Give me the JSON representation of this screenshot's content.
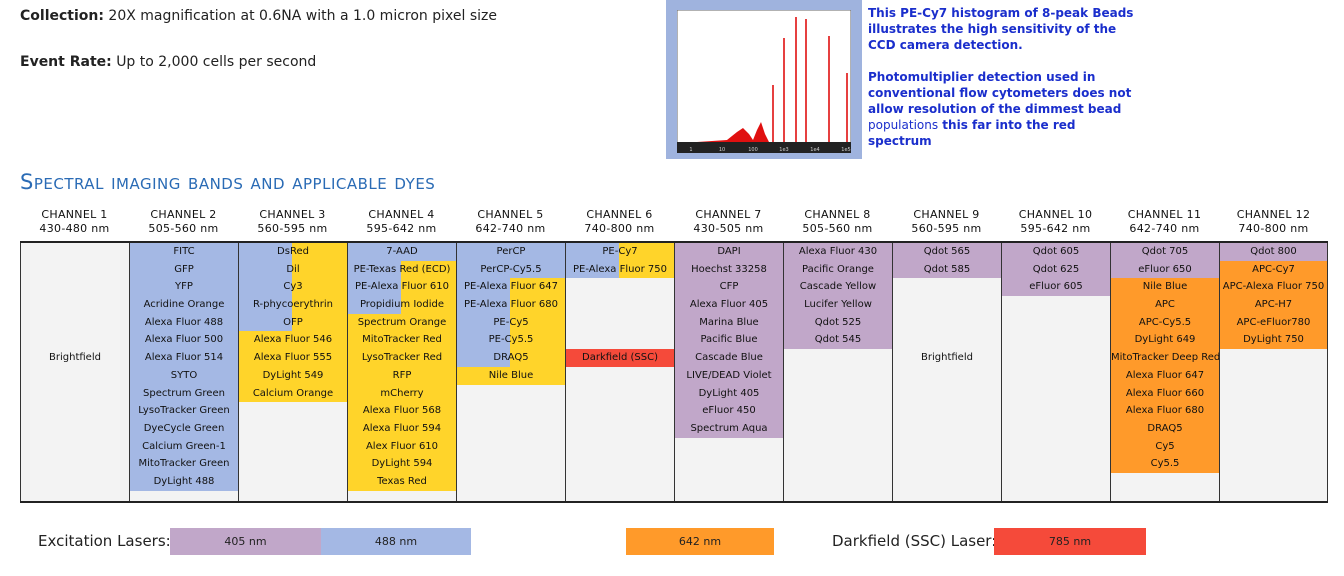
{
  "collection": {
    "label": "Collection:",
    "text": "20X magnification at 0.6NA with a 1.0 micron pixel size"
  },
  "event_rate": {
    "label": "Event Rate:",
    "text": "Up to 2,000  cells per second"
  },
  "histogram": {
    "x_ticks": [
      "1",
      "10",
      "100",
      "1e3",
      "1e4",
      "1e5"
    ],
    "peak_color": "#e01010",
    "frame_color": "#9fb3de"
  },
  "note": {
    "p1": "This PE-Cy7 histogram of 8-peak Beads illustrates the high sensitivity of the CCD camera detection.",
    "p2a": "Photomultiplier detection used in conventional flow cytometers does not allow resolution of the dimmest bead",
    "p2b": "populations",
    "p2c": "this far into the red spectrum"
  },
  "section_title": "Spectral imaging bands and applicable dyes",
  "colors": {
    "blue_488": "#a4b8e4",
    "yellow": "#ffd42a",
    "purple_405": "#c1a7c9",
    "orange_642": "#ff9a2a",
    "red_785": "#f54a3a",
    "title_blue": "#2a6bb5"
  },
  "channels": [
    {
      "name": "CHANNEL 1",
      "range": "430-480 nm",
      "items": [
        {
          "t": "",
          "f": "none"
        },
        {
          "t": "",
          "f": "none"
        },
        {
          "t": "",
          "f": "none"
        },
        {
          "t": "",
          "f": "none"
        },
        {
          "t": "",
          "f": "none"
        },
        {
          "t": "",
          "f": "none"
        },
        {
          "t": "Brightfield",
          "f": "none"
        }
      ]
    },
    {
      "name": "CHANNEL 2",
      "range": "505-560 nm",
      "items": [
        {
          "t": "FITC",
          "f": "blue"
        },
        {
          "t": "GFP",
          "f": "blue"
        },
        {
          "t": "YFP",
          "f": "blue"
        },
        {
          "t": "Acridine Orange",
          "f": "blue"
        },
        {
          "t": "Alexa Fluor 488",
          "f": "blue"
        },
        {
          "t": "Alexa Fluor 500",
          "f": "blue"
        },
        {
          "t": "Alexa Fluor 514",
          "f": "blue"
        },
        {
          "t": "SYTO",
          "f": "blue"
        },
        {
          "t": "Spectrum Green",
          "f": "blue"
        },
        {
          "t": "LysoTracker Green",
          "f": "blue"
        },
        {
          "t": "DyeCycle Green",
          "f": "blue"
        },
        {
          "t": "Calcium Green-1",
          "f": "blue"
        },
        {
          "t": "MitoTracker Green",
          "f": "blue"
        },
        {
          "t": "DyLight 488",
          "f": "blue"
        }
      ]
    },
    {
      "name": "CHANNEL 3",
      "range": "560-595 nm",
      "items": [
        {
          "t": "DsRed",
          "f": "blue-yellow"
        },
        {
          "t": "Dil",
          "f": "blue-yellow"
        },
        {
          "t": "Cy3",
          "f": "blue-yellow"
        },
        {
          "t": "R-phycoerythrin",
          "f": "blue-yellow"
        },
        {
          "t": "OFP",
          "f": "blue-yellow"
        },
        {
          "t": "Alexa Fluor 546",
          "f": "yellow"
        },
        {
          "t": "Alexa Fluor 555",
          "f": "yellow"
        },
        {
          "t": "DyLight 549",
          "f": "yellow"
        },
        {
          "t": "Calcium Orange",
          "f": "yellow"
        }
      ]
    },
    {
      "name": "CHANNEL 4",
      "range": "595-642 nm",
      "items": [
        {
          "t": "7-AAD",
          "f": "blue"
        },
        {
          "t": "PE-Texas Red (ECD)",
          "f": "blue-yellow"
        },
        {
          "t": "PE-Alexa Fluor 610",
          "f": "blue-yellow"
        },
        {
          "t": "Propidium Iodide",
          "f": "blue-yellow"
        },
        {
          "t": "Spectrum Orange",
          "f": "yellow"
        },
        {
          "t": "MitoTracker Red",
          "f": "yellow"
        },
        {
          "t": "LysoTracker Red",
          "f": "yellow"
        },
        {
          "t": "RFP",
          "f": "yellow"
        },
        {
          "t": "mCherry",
          "f": "yellow"
        },
        {
          "t": "Alexa Fluor 568",
          "f": "yellow"
        },
        {
          "t": "Alexa Fluor 594",
          "f": "yellow"
        },
        {
          "t": "Alex Fluor 610",
          "f": "yellow"
        },
        {
          "t": "DyLight 594",
          "f": "yellow"
        },
        {
          "t": "Texas Red",
          "f": "yellow"
        }
      ]
    },
    {
      "name": "CHANNEL 5",
      "range": "642-740 nm",
      "items": [
        {
          "t": "PerCP",
          "f": "blue"
        },
        {
          "t": "PerCP-Cy5.5",
          "f": "blue"
        },
        {
          "t": "PE-Alexa Fluor 647",
          "f": "blue-yellow"
        },
        {
          "t": "PE-Alexa Fluor 680",
          "f": "blue-yellow"
        },
        {
          "t": "PE-Cy5",
          "f": "blue-yellow"
        },
        {
          "t": "PE-Cy5.5",
          "f": "blue-yellow"
        },
        {
          "t": "DRAQ5",
          "f": "blue-yellow"
        },
        {
          "t": "Nile Blue",
          "f": "yellow"
        }
      ]
    },
    {
      "name": "CHANNEL 6",
      "range": "740-800 nm",
      "items": [
        {
          "t": "PE-Cy7",
          "f": "blue-yellow"
        },
        {
          "t": "PE-Alexa Fluor 750",
          "f": "blue-yellow"
        },
        {
          "t": "",
          "f": "none"
        },
        {
          "t": "",
          "f": "none"
        },
        {
          "t": "",
          "f": "none"
        },
        {
          "t": "",
          "f": "none"
        },
        {
          "t": "Darkfield (SSC)",
          "f": "red"
        }
      ]
    },
    {
      "name": "CHANNEL 7",
      "range": "430-505 nm",
      "items": [
        {
          "t": "DAPI",
          "f": "purple"
        },
        {
          "t": "Hoechst 33258",
          "f": "purple"
        },
        {
          "t": "CFP",
          "f": "purple"
        },
        {
          "t": "Alexa Fluor 405",
          "f": "purple"
        },
        {
          "t": "Marina Blue",
          "f": "purple"
        },
        {
          "t": "Pacific Blue",
          "f": "purple"
        },
        {
          "t": "Cascade Blue",
          "f": "purple"
        },
        {
          "t": "LIVE/DEAD Violet",
          "f": "purple"
        },
        {
          "t": "DyLight 405",
          "f": "purple"
        },
        {
          "t": "eFluor 450",
          "f": "purple"
        },
        {
          "t": "Spectrum Aqua",
          "f": "purple"
        }
      ]
    },
    {
      "name": "CHANNEL 8",
      "range": "505-560 nm",
      "items": [
        {
          "t": "Alexa Fluor 430",
          "f": "purple"
        },
        {
          "t": "Pacific Orange",
          "f": "purple"
        },
        {
          "t": "Cascade Yellow",
          "f": "purple"
        },
        {
          "t": "Lucifer Yellow",
          "f": "purple"
        },
        {
          "t": "Qdot 525",
          "f": "purple"
        },
        {
          "t": "Qdot 545",
          "f": "purple"
        }
      ]
    },
    {
      "name": "CHANNEL 9",
      "range": "560-595 nm",
      "items": [
        {
          "t": "Qdot 565",
          "f": "purple"
        },
        {
          "t": "Qdot 585",
          "f": "purple"
        },
        {
          "t": "",
          "f": "none"
        },
        {
          "t": "",
          "f": "none"
        },
        {
          "t": "",
          "f": "none"
        },
        {
          "t": "",
          "f": "none"
        },
        {
          "t": "Brightfield",
          "f": "none"
        }
      ]
    },
    {
      "name": "CHANNEL 10",
      "range": "595-642 nm",
      "items": [
        {
          "t": "Qdot 605",
          "f": "purple"
        },
        {
          "t": "Qdot 625",
          "f": "purple"
        },
        {
          "t": "eFluor 605",
          "f": "purple"
        }
      ]
    },
    {
      "name": "CHANNEL 11",
      "range": "642-740 nm",
      "items": [
        {
          "t": "Qdot 705",
          "f": "purple"
        },
        {
          "t": "eFluor 650",
          "f": "purple"
        },
        {
          "t": "Nile Blue",
          "f": "orange"
        },
        {
          "t": "APC",
          "f": "orange"
        },
        {
          "t": "APC-Cy5.5",
          "f": "orange"
        },
        {
          "t": "DyLight 649",
          "f": "orange"
        },
        {
          "t": "MitoTracker Deep Red",
          "f": "orange"
        },
        {
          "t": "Alexa Fluor 647",
          "f": "orange"
        },
        {
          "t": "Alexa Fluor 660",
          "f": "orange"
        },
        {
          "t": "Alexa Fluor 680",
          "f": "orange"
        },
        {
          "t": "DRAQ5",
          "f": "orange"
        },
        {
          "t": "Cy5",
          "f": "orange"
        },
        {
          "t": "Cy5.5",
          "f": "orange"
        }
      ]
    },
    {
      "name": "CHANNEL 12",
      "range": "740-800 nm",
      "items": [
        {
          "t": "Qdot 800",
          "f": "purple"
        },
        {
          "t": "APC-Cy7",
          "f": "orange"
        },
        {
          "t": "APC-Alexa Fluor 750",
          "f": "orange"
        },
        {
          "t": "APC-H7",
          "f": "orange"
        },
        {
          "t": "APC-eFluor780",
          "f": "orange"
        },
        {
          "t": "DyLight 750",
          "f": "orange"
        }
      ]
    }
  ],
  "legend": {
    "excitation_label": "Excitation Lasers:",
    "lasers": [
      {
        "label": "405 nm",
        "color": "#c1a7c9"
      },
      {
        "label": "488 nm",
        "color": "#a4b8e4"
      },
      {
        "label": "642 nm",
        "color": "#ff9a2a"
      }
    ],
    "darkfield_label": "Darkfield (SSC) Laser:",
    "darkfield": {
      "label": "785 nm",
      "color": "#f54a3a"
    }
  }
}
